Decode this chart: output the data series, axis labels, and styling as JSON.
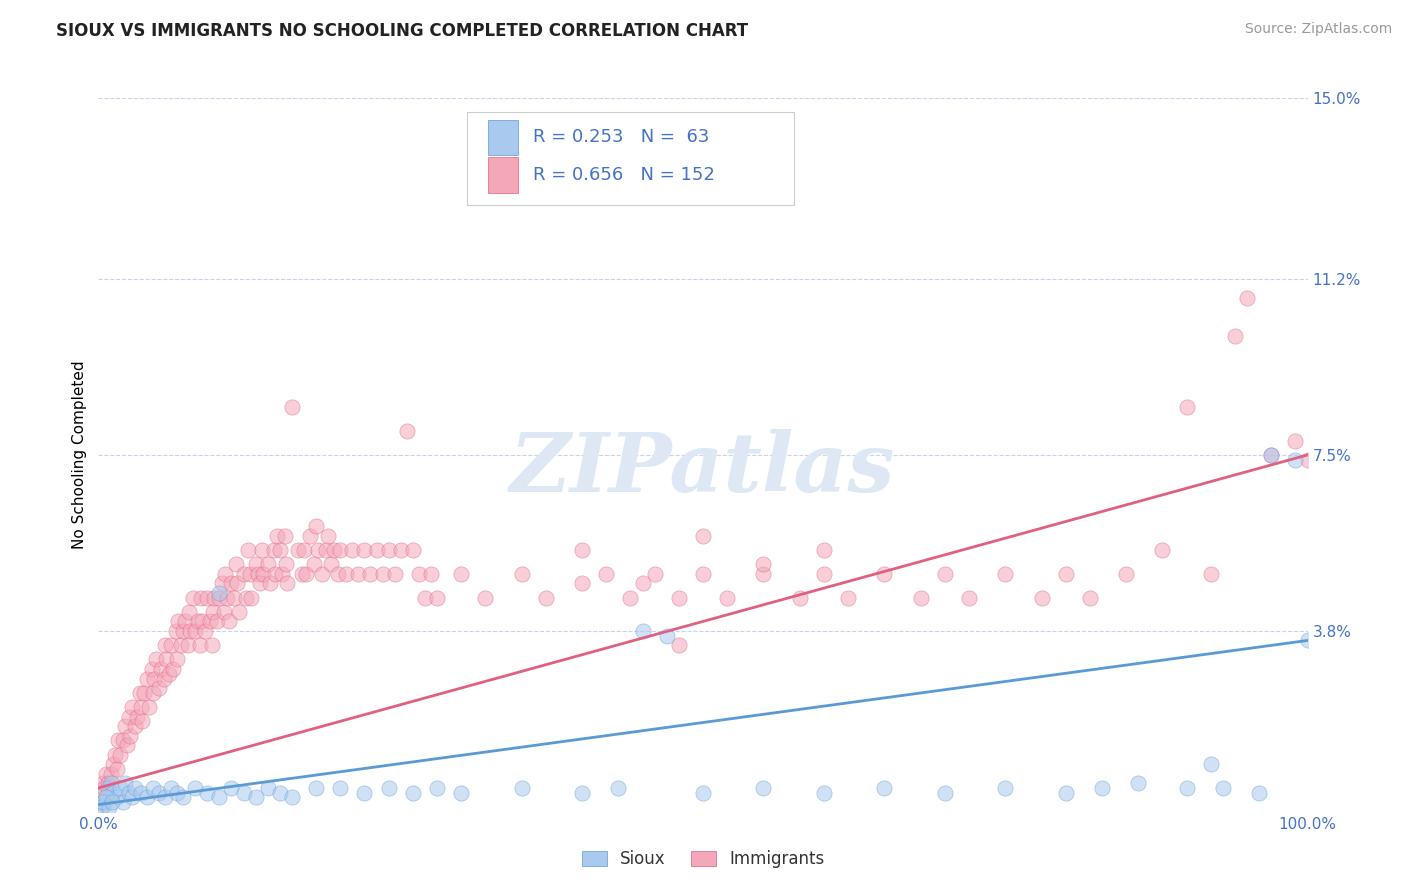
{
  "title": "SIOUX VS IMMIGRANTS NO SCHOOLING COMPLETED CORRELATION CHART",
  "source": "Source: ZipAtlas.com",
  "ylabel": "No Schooling Completed",
  "watermark": "ZIPatlas",
  "xlim": [
    0,
    100
  ],
  "ylim": [
    0,
    15.0
  ],
  "yticks": [
    0.0,
    3.8,
    7.5,
    11.2,
    15.0
  ],
  "xtick_labels": [
    "0.0%",
    "100.0%"
  ],
  "ytick_labels": [
    "",
    "3.8%",
    "7.5%",
    "11.2%",
    "15.0%"
  ],
  "sioux_color": "#aac9ee",
  "immigrants_color": "#f4a7b9",
  "sioux_line_color": "#5b9bd5",
  "immigrants_line_color": "#e06080",
  "R_sioux": 0.253,
  "N_sioux": 63,
  "R_immigrants": 0.656,
  "N_immigrants": 152,
  "sioux_line_x": [
    0,
    100
  ],
  "sioux_line_y": [
    0.15,
    3.6
  ],
  "immigrants_line_x": [
    0,
    100
  ],
  "immigrants_line_y": [
    0.5,
    7.5
  ],
  "title_fontsize": 12,
  "axis_label_fontsize": 11,
  "tick_fontsize": 11,
  "legend_fontsize": 13,
  "source_fontsize": 10,
  "scatter_size": 120,
  "scatter_alpha": 0.55,
  "background_color": "#ffffff",
  "grid_color": "#c8d4e8",
  "text_color": "#4472c4",
  "watermark_color": "#dde8f4",
  "watermark_fontsize": 60,
  "sioux_scatter": [
    [
      0.3,
      0.2
    ],
    [
      0.5,
      0.15
    ],
    [
      0.8,
      0.5
    ],
    [
      1.0,
      0.6
    ],
    [
      1.2,
      0.4
    ],
    [
      1.5,
      0.3
    ],
    [
      1.8,
      0.5
    ],
    [
      2.0,
      0.2
    ],
    [
      2.2,
      0.6
    ],
    [
      2.5,
      0.4
    ],
    [
      2.8,
      0.3
    ],
    [
      3.0,
      0.5
    ],
    [
      3.5,
      0.4
    ],
    [
      4.0,
      0.3
    ],
    [
      4.5,
      0.5
    ],
    [
      5.0,
      0.4
    ],
    [
      5.5,
      0.3
    ],
    [
      6.0,
      0.5
    ],
    [
      6.5,
      0.4
    ],
    [
      7.0,
      0.3
    ],
    [
      8.0,
      0.5
    ],
    [
      9.0,
      0.4
    ],
    [
      10.0,
      0.3
    ],
    [
      11.0,
      0.5
    ],
    [
      12.0,
      0.4
    ],
    [
      13.0,
      0.3
    ],
    [
      14.0,
      0.5
    ],
    [
      15.0,
      0.4
    ],
    [
      16.0,
      0.3
    ],
    [
      18.0,
      0.5
    ],
    [
      10.0,
      4.6
    ],
    [
      20.0,
      0.5
    ],
    [
      22.0,
      0.4
    ],
    [
      24.0,
      0.5
    ],
    [
      26.0,
      0.4
    ],
    [
      28.0,
      0.5
    ],
    [
      30.0,
      0.4
    ],
    [
      35.0,
      0.5
    ],
    [
      40.0,
      0.4
    ],
    [
      43.0,
      0.5
    ],
    [
      45.0,
      3.8
    ],
    [
      47.0,
      3.7
    ],
    [
      50.0,
      0.4
    ],
    [
      55.0,
      0.5
    ],
    [
      60.0,
      0.4
    ],
    [
      65.0,
      0.5
    ],
    [
      70.0,
      0.4
    ],
    [
      75.0,
      0.5
    ],
    [
      80.0,
      0.4
    ],
    [
      83.0,
      0.5
    ],
    [
      86.0,
      0.6
    ],
    [
      90.0,
      0.5
    ],
    [
      92.0,
      1.0
    ],
    [
      93.0,
      0.5
    ],
    [
      96.0,
      0.4
    ],
    [
      97.0,
      7.5
    ],
    [
      99.0,
      7.4
    ],
    [
      100.0,
      3.6
    ],
    [
      0.2,
      0.1
    ],
    [
      0.4,
      0.2
    ],
    [
      0.6,
      0.3
    ],
    [
      0.9,
      0.1
    ],
    [
      1.1,
      0.2
    ]
  ],
  "immigrants_scatter": [
    [
      0.2,
      0.4
    ],
    [
      0.4,
      0.6
    ],
    [
      0.5,
      0.5
    ],
    [
      0.6,
      0.8
    ],
    [
      0.8,
      0.6
    ],
    [
      1.0,
      0.8
    ],
    [
      1.2,
      1.0
    ],
    [
      1.4,
      1.2
    ],
    [
      1.5,
      0.9
    ],
    [
      1.6,
      1.5
    ],
    [
      1.8,
      1.2
    ],
    [
      2.0,
      1.5
    ],
    [
      2.2,
      1.8
    ],
    [
      2.4,
      1.4
    ],
    [
      2.5,
      2.0
    ],
    [
      2.6,
      1.6
    ],
    [
      2.8,
      2.2
    ],
    [
      3.0,
      1.8
    ],
    [
      3.2,
      2.0
    ],
    [
      3.4,
      2.5
    ],
    [
      3.5,
      2.2
    ],
    [
      3.6,
      1.9
    ],
    [
      3.8,
      2.5
    ],
    [
      4.0,
      2.8
    ],
    [
      4.2,
      2.2
    ],
    [
      4.4,
      3.0
    ],
    [
      4.5,
      2.5
    ],
    [
      4.6,
      2.8
    ],
    [
      4.8,
      3.2
    ],
    [
      5.0,
      2.6
    ],
    [
      5.2,
      3.0
    ],
    [
      5.4,
      2.8
    ],
    [
      5.5,
      3.5
    ],
    [
      5.6,
      3.2
    ],
    [
      5.8,
      2.9
    ],
    [
      6.0,
      3.5
    ],
    [
      6.2,
      3.0
    ],
    [
      6.4,
      3.8
    ],
    [
      6.5,
      3.2
    ],
    [
      6.6,
      4.0
    ],
    [
      6.8,
      3.5
    ],
    [
      7.0,
      3.8
    ],
    [
      7.2,
      4.0
    ],
    [
      7.4,
      3.5
    ],
    [
      7.5,
      4.2
    ],
    [
      7.6,
      3.8
    ],
    [
      7.8,
      4.5
    ],
    [
      8.0,
      3.8
    ],
    [
      8.2,
      4.0
    ],
    [
      8.4,
      3.5
    ],
    [
      8.5,
      4.5
    ],
    [
      8.6,
      4.0
    ],
    [
      8.8,
      3.8
    ],
    [
      9.0,
      4.5
    ],
    [
      9.2,
      4.0
    ],
    [
      9.4,
      3.5
    ],
    [
      9.5,
      4.2
    ],
    [
      9.6,
      4.5
    ],
    [
      9.8,
      4.0
    ],
    [
      10.0,
      4.5
    ],
    [
      10.2,
      4.8
    ],
    [
      10.4,
      4.2
    ],
    [
      10.5,
      5.0
    ],
    [
      10.6,
      4.5
    ],
    [
      10.8,
      4.0
    ],
    [
      11.0,
      4.8
    ],
    [
      11.2,
      4.5
    ],
    [
      11.4,
      5.2
    ],
    [
      11.5,
      4.8
    ],
    [
      11.6,
      4.2
    ],
    [
      12.0,
      5.0
    ],
    [
      12.2,
      4.5
    ],
    [
      12.4,
      5.5
    ],
    [
      12.5,
      5.0
    ],
    [
      12.6,
      4.5
    ],
    [
      13.0,
      5.2
    ],
    [
      13.2,
      5.0
    ],
    [
      13.4,
      4.8
    ],
    [
      13.5,
      5.5
    ],
    [
      13.6,
      5.0
    ],
    [
      14.0,
      5.2
    ],
    [
      14.2,
      4.8
    ],
    [
      14.5,
      5.5
    ],
    [
      14.6,
      5.0
    ],
    [
      14.8,
      5.8
    ],
    [
      15.0,
      5.5
    ],
    [
      15.2,
      5.0
    ],
    [
      15.4,
      5.8
    ],
    [
      15.5,
      5.2
    ],
    [
      15.6,
      4.8
    ],
    [
      16.0,
      8.5
    ],
    [
      16.5,
      5.5
    ],
    [
      16.8,
      5.0
    ],
    [
      17.0,
      5.5
    ],
    [
      17.2,
      5.0
    ],
    [
      17.5,
      5.8
    ],
    [
      17.8,
      5.2
    ],
    [
      18.0,
      6.0
    ],
    [
      18.2,
      5.5
    ],
    [
      18.5,
      5.0
    ],
    [
      18.8,
      5.5
    ],
    [
      19.0,
      5.8
    ],
    [
      19.2,
      5.2
    ],
    [
      19.5,
      5.5
    ],
    [
      19.8,
      5.0
    ],
    [
      20.0,
      5.5
    ],
    [
      20.5,
      5.0
    ],
    [
      21.0,
      5.5
    ],
    [
      21.5,
      5.0
    ],
    [
      22.0,
      5.5
    ],
    [
      22.5,
      5.0
    ],
    [
      23.0,
      5.5
    ],
    [
      23.5,
      5.0
    ],
    [
      24.0,
      5.5
    ],
    [
      24.5,
      5.0
    ],
    [
      25.0,
      5.5
    ],
    [
      25.5,
      8.0
    ],
    [
      26.0,
      5.5
    ],
    [
      26.5,
      5.0
    ],
    [
      27.0,
      4.5
    ],
    [
      27.5,
      5.0
    ],
    [
      28.0,
      4.5
    ],
    [
      30.0,
      5.0
    ],
    [
      32.0,
      4.5
    ],
    [
      35.0,
      5.0
    ],
    [
      37.0,
      4.5
    ],
    [
      40.0,
      4.8
    ],
    [
      42.0,
      5.0
    ],
    [
      44.0,
      4.5
    ],
    [
      46.0,
      5.0
    ],
    [
      48.0,
      4.5
    ],
    [
      50.0,
      5.0
    ],
    [
      52.0,
      4.5
    ],
    [
      55.0,
      5.0
    ],
    [
      58.0,
      4.5
    ],
    [
      60.0,
      5.0
    ],
    [
      62.0,
      4.5
    ],
    [
      65.0,
      5.0
    ],
    [
      68.0,
      4.5
    ],
    [
      70.0,
      5.0
    ],
    [
      72.0,
      4.5
    ],
    [
      75.0,
      5.0
    ],
    [
      78.0,
      4.5
    ],
    [
      80.0,
      5.0
    ],
    [
      82.0,
      4.5
    ],
    [
      85.0,
      5.0
    ],
    [
      40.0,
      5.5
    ],
    [
      45.0,
      4.8
    ],
    [
      48.0,
      3.5
    ],
    [
      50.0,
      5.8
    ],
    [
      55.0,
      5.2
    ],
    [
      60.0,
      5.5
    ],
    [
      88.0,
      5.5
    ],
    [
      90.0,
      8.5
    ],
    [
      92.0,
      5.0
    ],
    [
      94.0,
      10.0
    ],
    [
      95.0,
      10.8
    ],
    [
      97.0,
      7.5
    ],
    [
      99.0,
      7.8
    ],
    [
      100.0,
      7.4
    ]
  ]
}
